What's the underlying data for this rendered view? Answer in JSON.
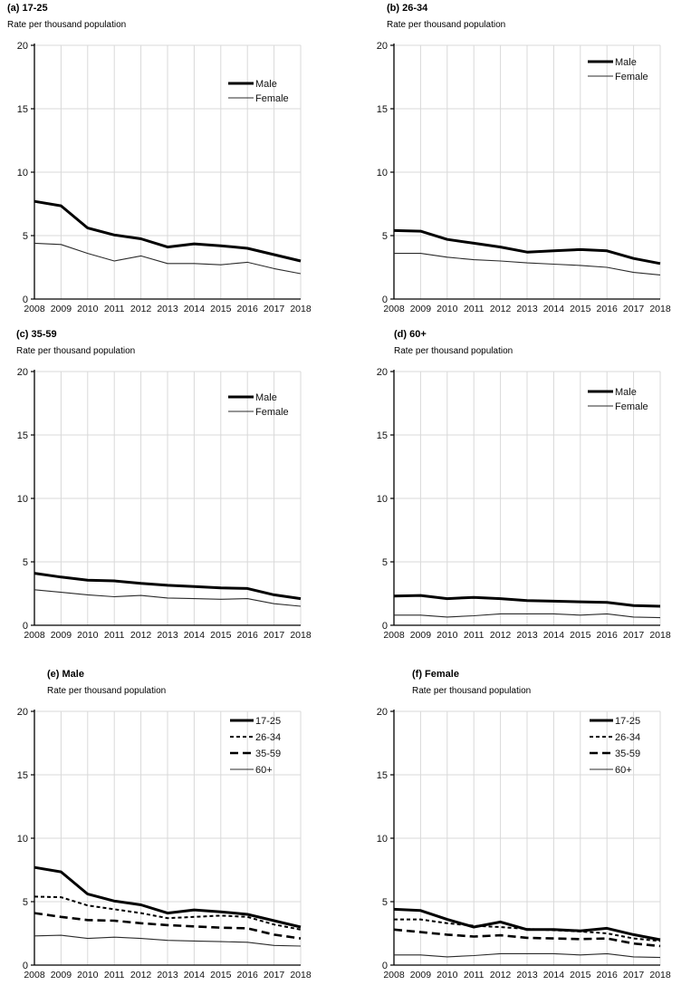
{
  "figure": {
    "background": "#ffffff",
    "accent_color": "#000000",
    "grid_color": "#d9d9d9"
  },
  "chart_data": [
    {
      "id": "a",
      "type": "line",
      "title": "(a) 17-25",
      "ylabel": "Rate per thousand population",
      "x": [
        2008,
        2009,
        2010,
        2011,
        2012,
        2013,
        2014,
        2015,
        2016,
        2017,
        2018
      ],
      "ylim": [
        0,
        20
      ],
      "yticks": [
        0,
        5,
        10,
        15,
        20
      ],
      "grid": true,
      "legend": {
        "position": "upper-right",
        "y": 52
      },
      "series": [
        {
          "name": "Male",
          "style": "thick-solid",
          "values": [
            7.7,
            7.35,
            5.6,
            5.05,
            4.75,
            4.1,
            4.35,
            4.2,
            4.0,
            3.5,
            3.0
          ]
        },
        {
          "name": "Female",
          "style": "thin-solid",
          "values": [
            4.4,
            4.3,
            3.6,
            3.0,
            3.4,
            2.8,
            2.8,
            2.7,
            2.9,
            2.4,
            2.0
          ]
        }
      ]
    },
    {
      "id": "b",
      "type": "line",
      "title": "(b) 26-34",
      "ylabel": "Rate per thousand population",
      "x": [
        2008,
        2009,
        2010,
        2011,
        2012,
        2013,
        2014,
        2015,
        2016,
        2017,
        2018
      ],
      "ylim": [
        0,
        20
      ],
      "yticks": [
        0,
        5,
        10,
        15,
        20
      ],
      "grid": true,
      "legend": {
        "position": "upper-right",
        "y": 28
      },
      "series": [
        {
          "name": "Male",
          "style": "thick-solid",
          "values": [
            5.4,
            5.35,
            4.7,
            4.4,
            4.1,
            3.7,
            3.8,
            3.9,
            3.8,
            3.2,
            2.8
          ]
        },
        {
          "name": "Female",
          "style": "thin-solid",
          "values": [
            3.6,
            3.6,
            3.3,
            3.1,
            3.0,
            2.85,
            2.75,
            2.65,
            2.5,
            2.1,
            1.9
          ]
        }
      ]
    },
    {
      "id": "c",
      "type": "line",
      "title": "(c) 35-59",
      "ylabel": "Rate per thousand population",
      "x": [
        2008,
        2009,
        2010,
        2011,
        2012,
        2013,
        2014,
        2015,
        2016,
        2017,
        2018
      ],
      "ylim": [
        0,
        20
      ],
      "yticks": [
        0,
        5,
        10,
        15,
        20
      ],
      "grid": true,
      "legend": {
        "position": "upper-right",
        "y": 38
      },
      "series": [
        {
          "name": "Male",
          "style": "thick-solid",
          "values": [
            4.1,
            3.8,
            3.55,
            3.5,
            3.3,
            3.15,
            3.05,
            2.95,
            2.9,
            2.4,
            2.1
          ]
        },
        {
          "name": "Female",
          "style": "thin-solid",
          "values": [
            2.8,
            2.6,
            2.4,
            2.25,
            2.35,
            2.15,
            2.1,
            2.05,
            2.1,
            1.7,
            1.5
          ]
        }
      ]
    },
    {
      "id": "d",
      "type": "line",
      "title": "(d) 60+",
      "ylabel": "Rate per thousand population",
      "x": [
        2008,
        2009,
        2010,
        2011,
        2012,
        2013,
        2014,
        2015,
        2016,
        2017,
        2018
      ],
      "ylim": [
        0,
        20
      ],
      "yticks": [
        0,
        5,
        10,
        15,
        20
      ],
      "grid": true,
      "legend": {
        "position": "upper-right",
        "y": 32
      },
      "series": [
        {
          "name": "Male",
          "style": "thick-solid",
          "values": [
            2.3,
            2.35,
            2.1,
            2.2,
            2.1,
            1.95,
            1.9,
            1.85,
            1.8,
            1.55,
            1.5
          ]
        },
        {
          "name": "Female",
          "style": "thin-solid",
          "values": [
            0.8,
            0.8,
            0.65,
            0.75,
            0.9,
            0.9,
            0.9,
            0.8,
            0.9,
            0.65,
            0.6
          ]
        }
      ]
    },
    {
      "id": "e",
      "type": "line",
      "title": "(e) Male",
      "ylabel": "Rate per thousand population",
      "x": [
        2008,
        2009,
        2010,
        2011,
        2012,
        2013,
        2014,
        2015,
        2016,
        2017,
        2018
      ],
      "ylim": [
        0,
        20
      ],
      "yticks": [
        0,
        5,
        10,
        15,
        20
      ],
      "grid": true,
      "legend": {
        "position": "upper-right",
        "y": 20
      },
      "series": [
        {
          "name": "17-25",
          "style": "thick-solid",
          "values": [
            7.7,
            7.35,
            5.6,
            5.05,
            4.75,
            4.1,
            4.35,
            4.2,
            4.0,
            3.5,
            3.0
          ]
        },
        {
          "name": "26-34",
          "style": "short-dash",
          "values": [
            5.4,
            5.35,
            4.7,
            4.4,
            4.1,
            3.7,
            3.8,
            3.9,
            3.8,
            3.2,
            2.8
          ]
        },
        {
          "name": "35-59",
          "style": "long-dash",
          "values": [
            4.1,
            3.8,
            3.55,
            3.5,
            3.3,
            3.15,
            3.05,
            2.95,
            2.9,
            2.4,
            2.1
          ]
        },
        {
          "name": "60+",
          "style": "thin-solid",
          "values": [
            2.3,
            2.35,
            2.1,
            2.2,
            2.1,
            1.95,
            1.9,
            1.85,
            1.8,
            1.55,
            1.5
          ]
        }
      ]
    },
    {
      "id": "f",
      "type": "line",
      "title": "(f) Female",
      "ylabel": "Rate per thousand population",
      "x": [
        2008,
        2009,
        2010,
        2011,
        2012,
        2013,
        2014,
        2015,
        2016,
        2017,
        2018
      ],
      "ylim": [
        0,
        20
      ],
      "yticks": [
        0,
        5,
        10,
        15,
        20
      ],
      "grid": true,
      "legend": {
        "position": "upper-right",
        "y": 20
      },
      "series": [
        {
          "name": "17-25",
          "style": "thick-solid",
          "values": [
            4.4,
            4.3,
            3.6,
            3.0,
            3.4,
            2.8,
            2.8,
            2.7,
            2.9,
            2.4,
            2.0
          ]
        },
        {
          "name": "26-34",
          "style": "short-dash",
          "values": [
            3.6,
            3.6,
            3.3,
            3.1,
            3.0,
            2.85,
            2.75,
            2.65,
            2.5,
            2.1,
            1.9
          ]
        },
        {
          "name": "35-59",
          "style": "long-dash",
          "values": [
            2.8,
            2.6,
            2.4,
            2.25,
            2.35,
            2.15,
            2.1,
            2.05,
            2.1,
            1.7,
            1.5
          ]
        },
        {
          "name": "60+",
          "style": "thin-solid",
          "values": [
            0.8,
            0.8,
            0.65,
            0.75,
            0.9,
            0.9,
            0.9,
            0.8,
            0.9,
            0.65,
            0.6
          ]
        }
      ]
    }
  ]
}
